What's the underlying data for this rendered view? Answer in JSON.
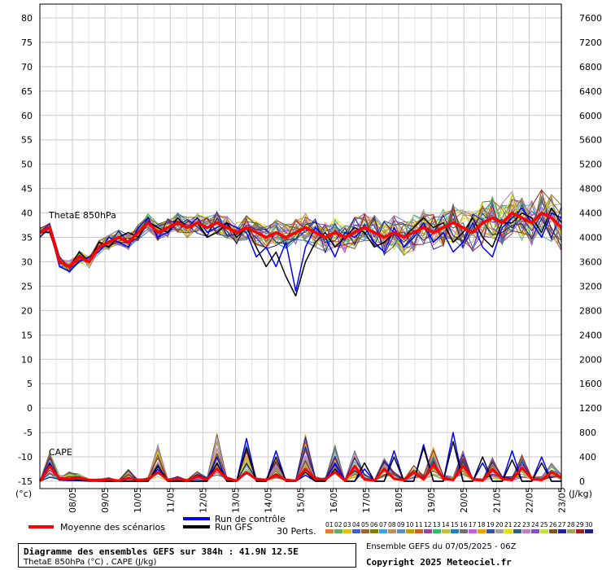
{
  "chart_data": {
    "type": "line",
    "left_axis": {
      "label": "(°c)",
      "ticks": [
        80,
        75,
        70,
        65,
        60,
        55,
        50,
        45,
        40,
        35,
        30,
        25,
        20,
        15,
        10,
        5,
        0,
        -5,
        -10,
        -15
      ],
      "range": [
        -15,
        80
      ]
    },
    "right_axis": {
      "label": "(J/kg)",
      "ticks": [
        7600,
        7200,
        6800,
        6400,
        6000,
        5600,
        5200,
        4800,
        4400,
        4000,
        3600,
        3200,
        2800,
        2400,
        2000,
        1600,
        1200,
        800,
        400,
        0
      ],
      "range": [
        0,
        7600
      ]
    },
    "x_labels": [
      "08/05",
      "09/05",
      "10/05",
      "11/05",
      "12/05",
      "13/05",
      "14/05",
      "15/05",
      "16/05",
      "17/05",
      "18/05",
      "19/05",
      "20/05",
      "21/05",
      "22/05",
      "23/05"
    ],
    "grid": true,
    "annotations": {
      "thetae_label": "ThetaE 850hPa",
      "cape_label": "CAPE"
    },
    "thetae_mean": [
      36,
      37,
      30,
      29,
      31,
      30,
      33,
      34,
      35,
      34,
      36,
      38,
      36,
      37,
      38,
      37,
      38,
      37,
      38,
      37,
      36,
      37,
      36,
      35,
      36,
      35,
      36,
      37,
      36,
      35,
      36,
      35,
      36,
      37,
      36,
      35,
      36,
      35,
      36,
      37,
      36,
      37,
      38,
      37,
      36,
      38,
      39,
      38,
      40,
      39,
      38,
      40,
      39,
      37
    ],
    "cape_mean": [
      0,
      250,
      50,
      40,
      60,
      20,
      10,
      30,
      10,
      50,
      20,
      30,
      150,
      20,
      40,
      10,
      80,
      30,
      200,
      40,
      10,
      150,
      30,
      20,
      100,
      20,
      10,
      200,
      40,
      30,
      150,
      10,
      250,
      30,
      10,
      200,
      40,
      20,
      150,
      30,
      280,
      50,
      20,
      250,
      30,
      10,
      200,
      40,
      20,
      220,
      40,
      20,
      150,
      60
    ],
    "thetae_control_run": [
      35,
      37,
      29,
      28,
      30,
      31,
      32,
      35,
      34,
      33,
      37,
      39,
      35,
      36,
      38,
      37,
      39,
      36,
      37,
      38,
      37,
      36,
      31,
      33,
      29,
      34,
      24,
      33,
      37,
      35,
      31,
      36,
      35,
      37,
      34,
      32,
      37,
      33,
      35,
      38,
      34,
      36,
      32,
      34,
      38,
      33,
      31,
      37,
      39,
      41,
      38,
      35,
      40,
      39
    ],
    "thetae_gfs_run": [
      36,
      36,
      30,
      29,
      32,
      30,
      34,
      33,
      35,
      36,
      35,
      38,
      37,
      36,
      39,
      37,
      38,
      35,
      36,
      38,
      35,
      37,
      33,
      29,
      32,
      27,
      23,
      30,
      34,
      36,
      33,
      35,
      37,
      36,
      33,
      34,
      36,
      35,
      37,
      39,
      37,
      38,
      34,
      36,
      39,
      35,
      33,
      38,
      38,
      40,
      39,
      36,
      41,
      38
    ],
    "cape_control_run": [
      0,
      300,
      20,
      10,
      10,
      0,
      0,
      0,
      0,
      0,
      0,
      0,
      200,
      0,
      0,
      0,
      0,
      0,
      400,
      0,
      0,
      700,
      0,
      0,
      500,
      0,
      0,
      100,
      0,
      0,
      300,
      0,
      0,
      200,
      0,
      0,
      500,
      0,
      0,
      600,
      0,
      0,
      800,
      0,
      0,
      300,
      0,
      0,
      500,
      0,
      0,
      400,
      0,
      0
    ],
    "cape_gfs_run": [
      0,
      280,
      30,
      20,
      20,
      10,
      0,
      0,
      0,
      0,
      0,
      0,
      250,
      0,
      0,
      0,
      0,
      0,
      300,
      0,
      0,
      550,
      0,
      0,
      400,
      0,
      0,
      150,
      0,
      0,
      200,
      0,
      0,
      300,
      0,
      0,
      400,
      0,
      0,
      550,
      0,
      0,
      650,
      0,
      0,
      400,
      0,
      0,
      350,
      0,
      0,
      300,
      0,
      0
    ],
    "legend": {
      "mean_label": "Moyenne des scénarios",
      "control_label": "Run de contrôle",
      "gfs_label": "Run GFS",
      "perts_label": "30 Perts.",
      "pert_ids": [
        "01",
        "02",
        "03",
        "04",
        "05",
        "06",
        "07",
        "08",
        "09",
        "10",
        "11",
        "12",
        "13",
        "14",
        "15",
        "16",
        "17",
        "18",
        "19",
        "20",
        "21",
        "22",
        "23",
        "24",
        "25",
        "26",
        "27",
        "28",
        "29",
        "30"
      ],
      "pert_colors": [
        "#e08030",
        "#60b060",
        "#e0c000",
        "#4060c0",
        "#a06030",
        "#808000",
        "#40a0e0",
        "#c09060",
        "#6090c0",
        "#c0a000",
        "#d06020",
        "#a040a0",
        "#30c060",
        "#c0c040",
        "#2080c0",
        "#707070",
        "#c060e0",
        "#f0a000",
        "#4050a0",
        "#a0a0a0",
        "#e0e000",
        "#306080",
        "#c080c0",
        "#8050c0",
        "#c0e040",
        "#805020",
        "#2020a0",
        "#a0a060",
        "#a02020",
        "#202080"
      ]
    },
    "mean_color": "#ff0000",
    "control_color": "#0000ff",
    "gfs_color": "#000000"
  },
  "info": {
    "title_line": "Diagramme des ensembles GEFS sur 384h : 41.9N 12.5E",
    "subtitle_line": "ThetaE 850hPa (°C) , CAPE (J/kg)",
    "ensemble_line": "Ensemble GEFS du 07/05/2025 - 06Z",
    "copyright_line": "Copyright 2025 Meteociel.fr"
  }
}
